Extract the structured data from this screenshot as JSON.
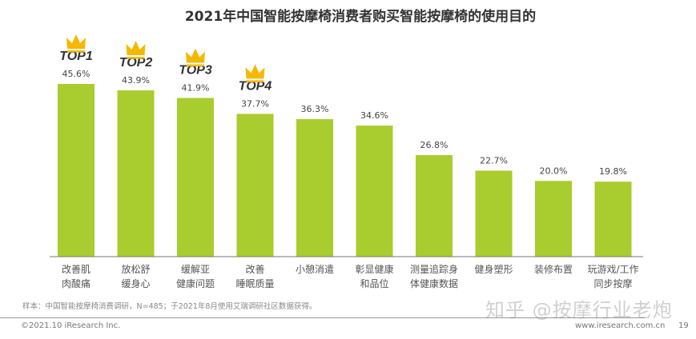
{
  "chart_data": {
    "type": "bar",
    "title": "2021年中国智能按摩椅消费者购买智能按摩椅的使用目的",
    "categories": [
      [
        "改善肌",
        "肉酸痛"
      ],
      [
        "放松舒",
        "缓身心"
      ],
      [
        "缓解亚",
        "健康问题"
      ],
      [
        "改善",
        "睡眠质量"
      ],
      [
        "小憩消遣"
      ],
      [
        "彰显健康",
        "和品位"
      ],
      [
        "测量追踪身",
        "体健康数据"
      ],
      [
        "健身塑形"
      ],
      [
        "装修布置"
      ],
      [
        "玩游戏/工作",
        "同步按摩"
      ]
    ],
    "values": [
      45.6,
      43.9,
      41.9,
      37.7,
      36.3,
      34.6,
      26.8,
      22.7,
      20.0,
      19.8
    ],
    "data_labels": [
      "45.6%",
      "43.9%",
      "41.9%",
      "37.7%",
      "36.3%",
      "34.6%",
      "26.8%",
      "22.7%",
      "20.0%",
      "19.8%"
    ],
    "top_labels": [
      "TOP1",
      "TOP2",
      "TOP3",
      "TOP4"
    ],
    "ylim": [
      0,
      50
    ],
    "grid": false,
    "bar_color": "#a9cc2e",
    "crown_color": "#f5b800"
  },
  "footer": {
    "note": "样本：中国智能按摩椅消费调研，N=485；于2021年8月使用艾瑞调研社区数据获得。",
    "copyright": "©2021.10 iResearch Inc.",
    "site": "www.iresearch.com.cn",
    "page": "19",
    "watermark": "知乎 @按摩行业老炮"
  }
}
